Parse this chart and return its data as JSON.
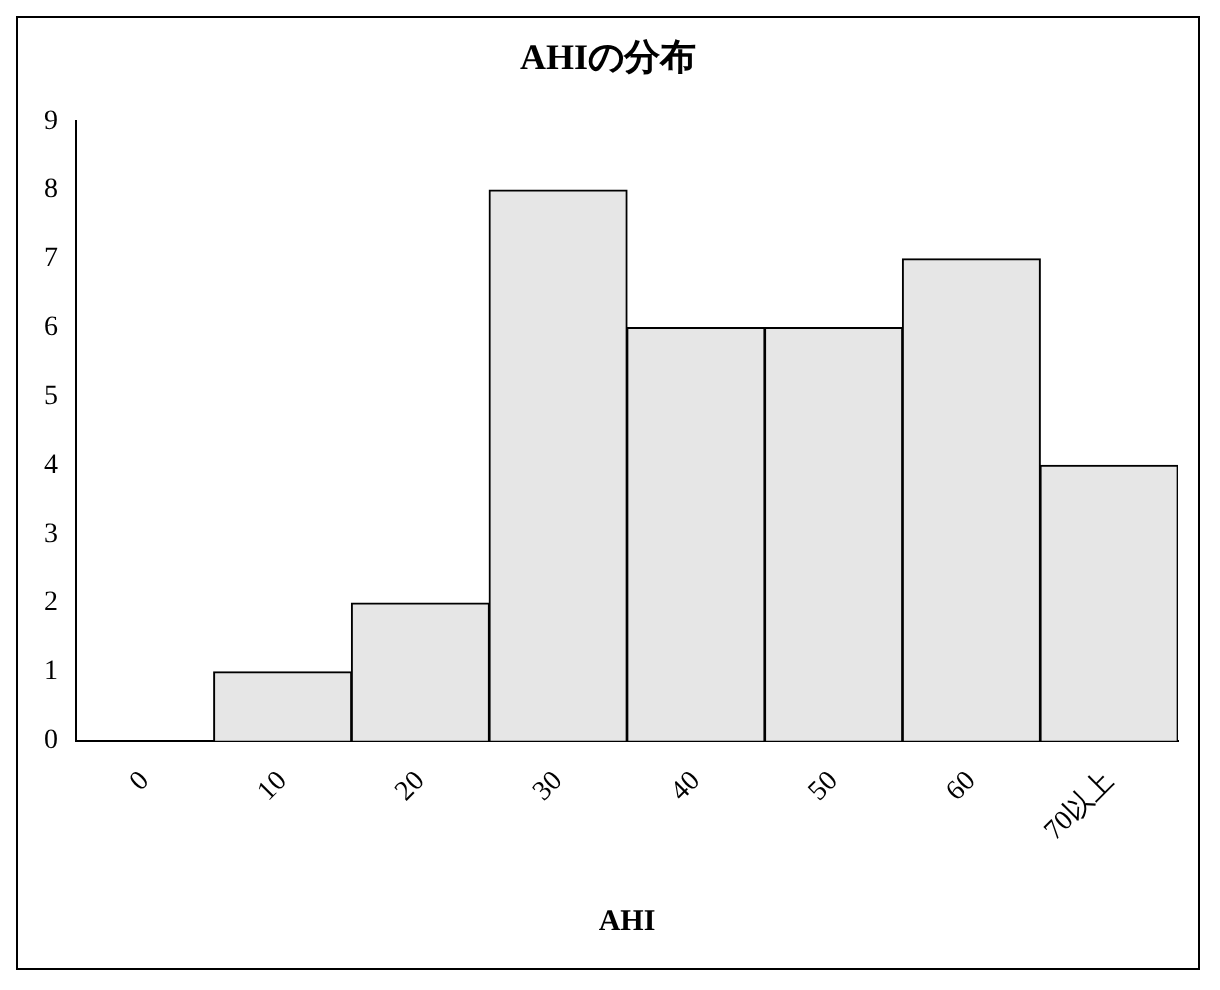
{
  "chart_data": {
    "type": "bar",
    "title": "AHIの分布",
    "xlabel": "AHI",
    "categories": [
      "0",
      "10",
      "20",
      "30",
      "40",
      "50",
      "60",
      "70以上"
    ],
    "values": [
      0,
      1,
      2,
      8,
      6,
      6,
      7,
      4
    ],
    "color": "#e6e6e6",
    "ylim": [
      0,
      9
    ],
    "yticks": [
      0,
      1,
      2,
      3,
      4,
      5,
      6,
      7,
      8,
      9
    ],
    "grid": false,
    "legend": false
  }
}
